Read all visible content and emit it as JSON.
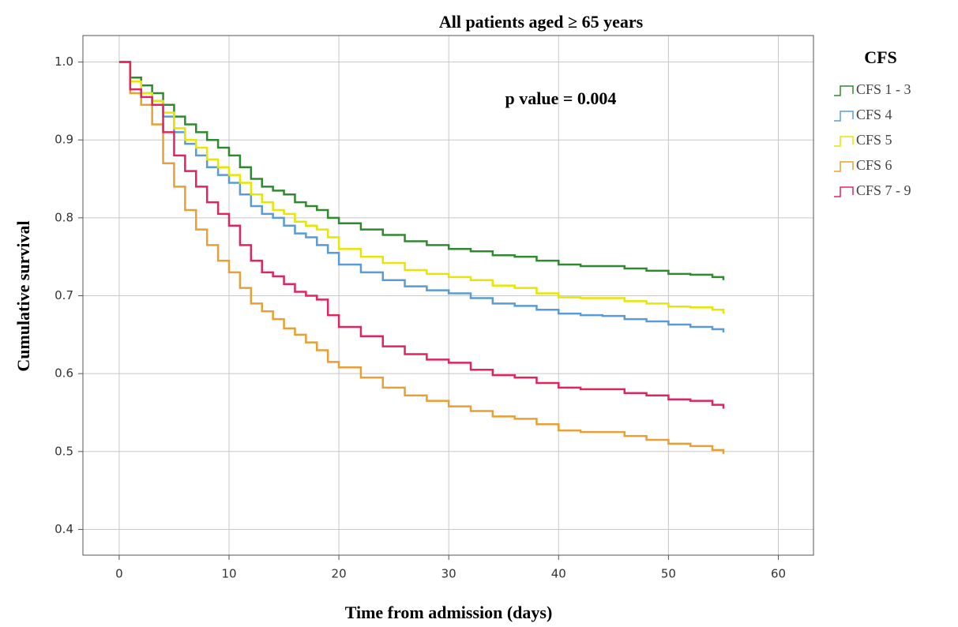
{
  "chart_data": {
    "type": "step",
    "title": "All patients aged ≥ 65 years",
    "x_label": "Time from admission (days)",
    "y_label": "Cumulative survival",
    "annotation": "p value = 0.004",
    "legend_title": "CFS",
    "legend_position": "right",
    "grid": true,
    "xlim": [
      -3.3,
      63.2
    ],
    "ylim": [
      0.367,
      1.034
    ],
    "xticks": [
      0,
      10,
      20,
      30,
      40,
      50,
      60
    ],
    "yticks": [
      0.4,
      0.5,
      0.6,
      0.7,
      0.8,
      0.9,
      {
        "value": 1,
        "label": "1.0"
      }
    ],
    "x": [
      0,
      1,
      2,
      3,
      4,
      5,
      6,
      7,
      8,
      9,
      10,
      11,
      12,
      13,
      14,
      15,
      16,
      17,
      18,
      19,
      20,
      22,
      24,
      26,
      28,
      30,
      32,
      34,
      36,
      38,
      40,
      42,
      44,
      46,
      48,
      50,
      52,
      54,
      55
    ],
    "series": [
      {
        "name": "CFS 1 - 3",
        "color": "#2f8a2f",
        "values": [
          1.0,
          0.98,
          0.97,
          0.96,
          0.945,
          0.93,
          0.92,
          0.91,
          0.9,
          0.89,
          0.88,
          0.865,
          0.85,
          0.84,
          0.835,
          0.83,
          0.82,
          0.815,
          0.81,
          0.8,
          0.793,
          0.785,
          0.778,
          0.77,
          0.765,
          0.76,
          0.757,
          0.752,
          0.75,
          0.745,
          0.74,
          0.738,
          0.738,
          0.735,
          0.732,
          0.728,
          0.727,
          0.724,
          0.72
        ]
      },
      {
        "name": "CFS 4",
        "color": "#5b9bd5",
        "values": [
          1.0,
          0.975,
          0.96,
          0.95,
          0.93,
          0.91,
          0.895,
          0.88,
          0.865,
          0.855,
          0.845,
          0.83,
          0.815,
          0.805,
          0.8,
          0.79,
          0.78,
          0.775,
          0.765,
          0.755,
          0.74,
          0.73,
          0.72,
          0.712,
          0.707,
          0.703,
          0.697,
          0.69,
          0.687,
          0.682,
          0.677,
          0.675,
          0.674,
          0.67,
          0.667,
          0.663,
          0.66,
          0.657,
          0.653
        ]
      },
      {
        "name": "CFS 5",
        "color": "#e6e600",
        "values": [
          1.0,
          0.975,
          0.96,
          0.95,
          0.935,
          0.915,
          0.9,
          0.89,
          0.875,
          0.865,
          0.855,
          0.845,
          0.83,
          0.82,
          0.81,
          0.805,
          0.795,
          0.79,
          0.785,
          0.775,
          0.76,
          0.75,
          0.742,
          0.733,
          0.728,
          0.724,
          0.72,
          0.713,
          0.71,
          0.703,
          0.698,
          0.697,
          0.697,
          0.693,
          0.69,
          0.686,
          0.685,
          0.682,
          0.677
        ]
      },
      {
        "name": "CFS 6",
        "color": "#e89f35",
        "values": [
          1.0,
          0.96,
          0.945,
          0.92,
          0.87,
          0.84,
          0.81,
          0.785,
          0.765,
          0.745,
          0.73,
          0.71,
          0.69,
          0.68,
          0.67,
          0.658,
          0.65,
          0.64,
          0.63,
          0.615,
          0.608,
          0.595,
          0.582,
          0.572,
          0.565,
          0.558,
          0.552,
          0.545,
          0.542,
          0.535,
          0.527,
          0.525,
          0.525,
          0.52,
          0.515,
          0.51,
          0.507,
          0.502,
          0.497
        ]
      },
      {
        "name": "CFS 7 - 9",
        "color": "#e0245e",
        "values": [
          1.0,
          0.965,
          0.955,
          0.945,
          0.91,
          0.88,
          0.86,
          0.84,
          0.82,
          0.805,
          0.79,
          0.765,
          0.745,
          0.73,
          0.725,
          0.715,
          0.705,
          0.7,
          0.695,
          0.675,
          0.66,
          0.648,
          0.635,
          0.625,
          0.618,
          0.614,
          0.605,
          0.598,
          0.595,
          0.588,
          0.582,
          0.58,
          0.58,
          0.575,
          0.572,
          0.567,
          0.565,
          0.56,
          0.555
        ]
      }
    ]
  }
}
